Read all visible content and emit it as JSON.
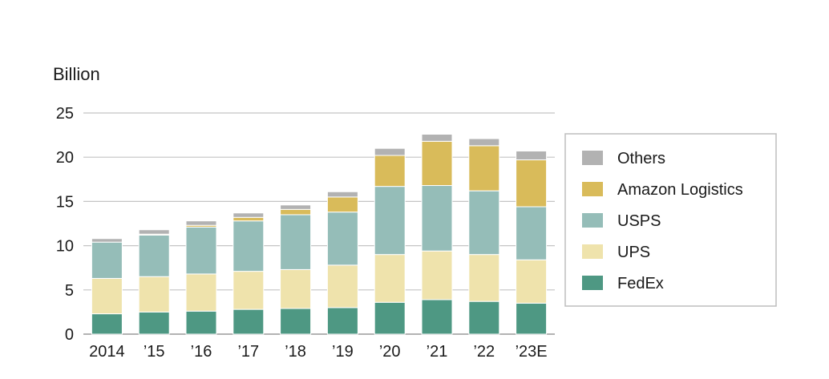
{
  "chart_data": {
    "type": "bar",
    "stacked": true,
    "ylabel": "Billion",
    "ylim": [
      0,
      25
    ],
    "yticks": [
      0,
      5,
      10,
      15,
      20,
      25
    ],
    "categories": [
      "2014",
      "’15",
      "’16",
      "’17",
      "’18",
      "’19",
      "’20",
      "’21",
      "’22",
      "’23E"
    ],
    "series": [
      {
        "name": "FedEx",
        "color": "#4e9883",
        "values": [
          2.3,
          2.5,
          2.6,
          2.8,
          2.9,
          3.0,
          3.6,
          3.9,
          3.7,
          3.5
        ]
      },
      {
        "name": "UPS",
        "color": "#efe3ac",
        "values": [
          4.0,
          4.0,
          4.2,
          4.3,
          4.4,
          4.8,
          5.4,
          5.5,
          5.3,
          4.9
        ]
      },
      {
        "name": "USPS",
        "color": "#95bdb8",
        "values": [
          4.1,
          4.7,
          5.3,
          5.7,
          6.2,
          6.0,
          7.7,
          7.4,
          7.2,
          6.0
        ]
      },
      {
        "name": "Amazon Logistics",
        "color": "#d9bb5a",
        "values": [
          0.0,
          0.1,
          0.2,
          0.4,
          0.6,
          1.7,
          3.5,
          5.0,
          5.1,
          5.3
        ]
      },
      {
        "name": "Others",
        "color": "#b2b2b2",
        "values": [
          0.4,
          0.5,
          0.5,
          0.5,
          0.5,
          0.6,
          0.8,
          0.8,
          0.8,
          1.0
        ]
      }
    ],
    "legend": {
      "position": "right",
      "order": [
        "Others",
        "Amazon Logistics",
        "USPS",
        "UPS",
        "FedEx"
      ]
    },
    "gridlines": true
  }
}
